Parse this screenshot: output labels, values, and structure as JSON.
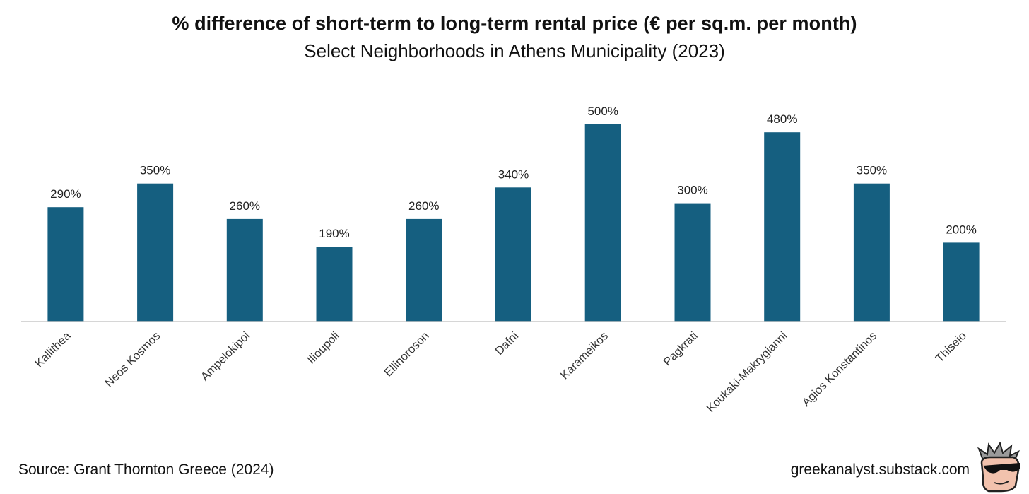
{
  "chart_data": {
    "type": "bar",
    "title": "% difference of short-term to long-term rental price (€ per sq.m. per month)",
    "subtitle": "Select Neighborhoods in Athens Municipality (2023)",
    "categories": [
      "Kallithea",
      "Neos Kosmos",
      "Ampelokipoi",
      "Ilioupoli",
      "Ellinoroson",
      "Dafni",
      "Karameikos",
      "Pagkrati",
      "Koukaki-Makrygianni",
      "Agios Konstantinos",
      "Thiseio"
    ],
    "values": [
      290,
      350,
      260,
      190,
      260,
      340,
      500,
      300,
      480,
      350,
      200
    ],
    "labels": [
      "290%",
      "350%",
      "260%",
      "190%",
      "260%",
      "340%",
      "500%",
      "300%",
      "480%",
      "350%",
      "200%"
    ],
    "value_unit": "%",
    "ylim": [
      0,
      500
    ],
    "grid": false,
    "legend": "none",
    "bar_color": "#155f80"
  },
  "footer": {
    "source": "Source: Grant Thornton Greece (2024)",
    "credit": "greekanalyst.substack.com"
  },
  "logo_icon": "sunglasses-avatar-icon"
}
